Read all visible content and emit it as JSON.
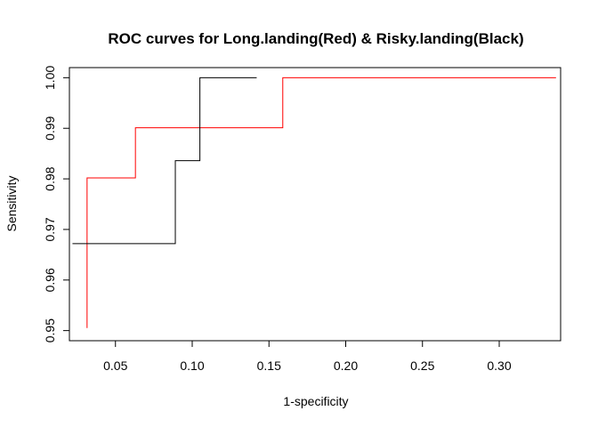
{
  "chart_data": {
    "type": "line",
    "title": "ROC curves for Long.landing(Red) & Risky.landing(Black)",
    "xlabel": "1-specificity",
    "ylabel": "Sensitivity",
    "xlim": [
      0.02,
      0.34
    ],
    "ylim": [
      0.948,
      1.002
    ],
    "x_ticks": [
      0.05,
      0.1,
      0.15,
      0.2,
      0.25,
      0.3
    ],
    "x_tick_labels": [
      "0.05",
      "0.10",
      "0.15",
      "0.20",
      "0.25",
      "0.30"
    ],
    "y_ticks": [
      0.95,
      0.96,
      0.97,
      0.98,
      0.99,
      1.0
    ],
    "y_tick_labels": [
      "0.95",
      "0.96",
      "0.97",
      "0.98",
      "0.99",
      "1.00"
    ],
    "grid": false,
    "series": [
      {
        "name": "Long.landing",
        "color": "#ff0000",
        "x": [
          0.0315,
          0.0315,
          0.063,
          0.063,
          0.159,
          0.159,
          0.337
        ],
        "y": [
          0.9505,
          0.9802,
          0.9802,
          0.9901,
          0.9901,
          1.0,
          1.0
        ]
      },
      {
        "name": "Risky.landing",
        "color": "#000000",
        "x": [
          0.022,
          0.089,
          0.089,
          0.105,
          0.105,
          0.142
        ],
        "y": [
          0.9672,
          0.9672,
          0.9836,
          0.9836,
          1.0,
          1.0
        ]
      }
    ]
  }
}
